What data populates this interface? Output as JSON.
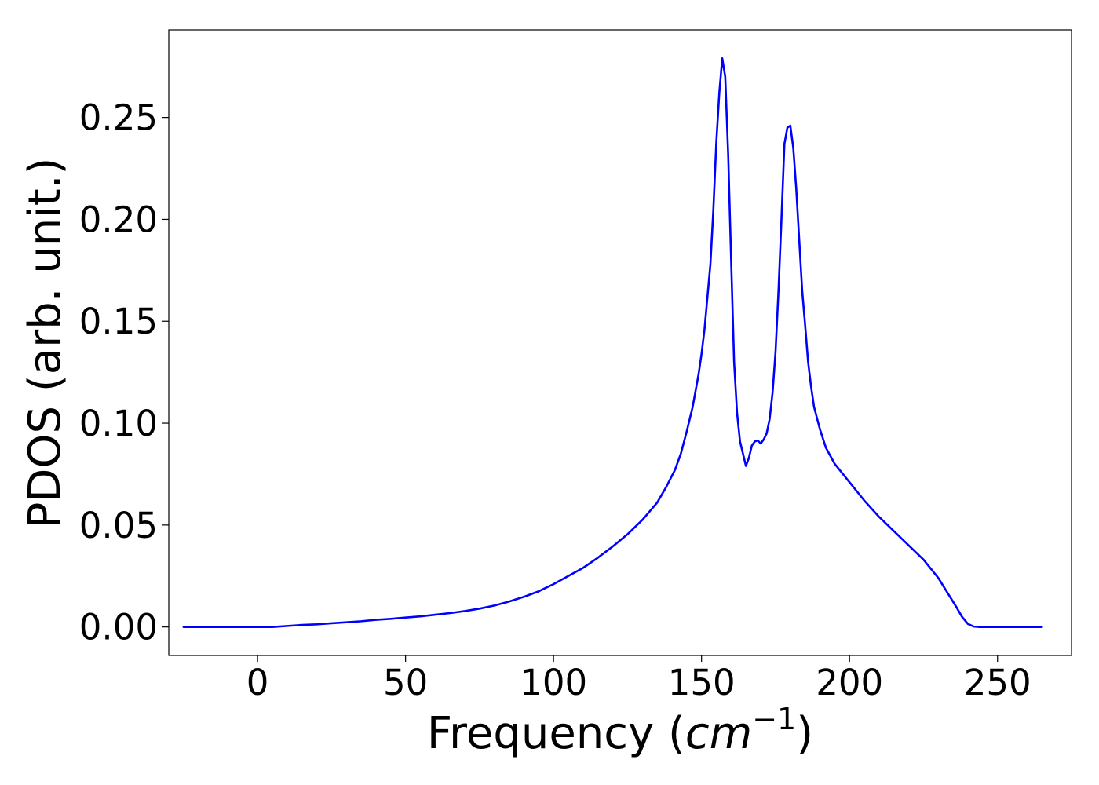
{
  "chart_data": {
    "type": "line",
    "title": "",
    "xlabel": "Frequency",
    "xlabel_unit": {
      "open": " (",
      "base": "cm",
      "exponent": "−1",
      "close": ")"
    },
    "ylabel": "PDOS (arb. unit.)",
    "xlim": [
      -30,
      275
    ],
    "ylim": [
      -0.014,
      0.293
    ],
    "xticks": [
      0,
      50,
      100,
      150,
      200,
      250
    ],
    "xtick_labels": [
      "0",
      "50",
      "100",
      "150",
      "200",
      "250"
    ],
    "yticks": [
      0.0,
      0.05,
      0.1,
      0.15,
      0.2,
      0.25
    ],
    "ytick_labels": [
      "0.00",
      "0.05",
      "0.10",
      "0.15",
      "0.20",
      "0.25"
    ],
    "grid": false,
    "legend": "none",
    "series": [
      {
        "color": "#0000ff",
        "x": [
          -25,
          0,
          5,
          10,
          15,
          20,
          25,
          30,
          35,
          40,
          45,
          50,
          55,
          60,
          65,
          70,
          75,
          80,
          85,
          90,
          95,
          100,
          105,
          110,
          115,
          120,
          125,
          130,
          135,
          138,
          141,
          143,
          145,
          147,
          148,
          149,
          150,
          151,
          152,
          153,
          154,
          155,
          156,
          157,
          158,
          159,
          160,
          161,
          162,
          163,
          165,
          166,
          167,
          168,
          169,
          170,
          171,
          172,
          173,
          174,
          175,
          176,
          177,
          178,
          179,
          180,
          181,
          182,
          183,
          184,
          185,
          186,
          187,
          188,
          190,
          192,
          195,
          200,
          205,
          210,
          215,
          220,
          225,
          230,
          233,
          236,
          238,
          240,
          242,
          244,
          247,
          250,
          260,
          265
        ],
        "y": [
          0.0,
          0.0,
          0.0,
          0.0005,
          0.001,
          0.0013,
          0.0018,
          0.0023,
          0.0028,
          0.0035,
          0.004,
          0.0046,
          0.0052,
          0.006,
          0.0068,
          0.0078,
          0.009,
          0.0105,
          0.0125,
          0.0148,
          0.0175,
          0.021,
          0.025,
          0.029,
          0.034,
          0.0395,
          0.0455,
          0.0525,
          0.061,
          0.0685,
          0.077,
          0.085,
          0.096,
          0.108,
          0.116,
          0.124,
          0.134,
          0.146,
          0.162,
          0.178,
          0.205,
          0.238,
          0.262,
          0.279,
          0.27,
          0.232,
          0.18,
          0.13,
          0.105,
          0.091,
          0.079,
          0.083,
          0.089,
          0.091,
          0.0915,
          0.09,
          0.092,
          0.095,
          0.102,
          0.115,
          0.135,
          0.165,
          0.2,
          0.237,
          0.245,
          0.246,
          0.235,
          0.215,
          0.19,
          0.165,
          0.148,
          0.13,
          0.118,
          0.108,
          0.097,
          0.088,
          0.08,
          0.071,
          0.062,
          0.054,
          0.047,
          0.04,
          0.033,
          0.024,
          0.017,
          0.01,
          0.005,
          0.0015,
          0.0002,
          0.0,
          0.0,
          0.0,
          0.0,
          0.0
        ]
      }
    ]
  }
}
